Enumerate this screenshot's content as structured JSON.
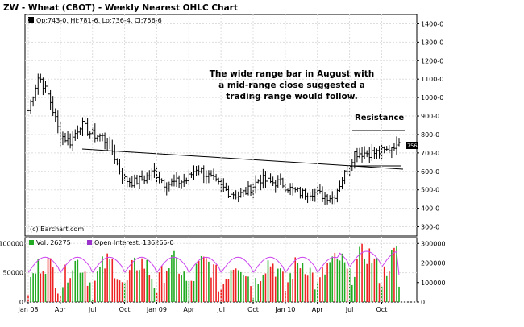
{
  "title": "ZW - Wheat (CBOT) - Weekly Nearest OHLC Chart",
  "price_panel": {
    "legend": "Op:743-0, Hi:781-6, Lo:736-4, Cl:756-6",
    "last_price_label": "756-6",
    "copyright": "(c) Barchart.com",
    "annotation_lines": [
      "The wide range bar in August with",
      "a mid-range close suggested a",
      "trading range would follow."
    ],
    "resistance_label": "Resistance"
  },
  "volume_panel": {
    "vol_legend": "Vol: 26275",
    "oi_legend": "Open Interest: 136265-0"
  },
  "colors": {
    "up_volume": "#22aa22",
    "down_volume": "#ee2222",
    "open_interest": "#cc44ee",
    "price_bars": "#000000",
    "vol_legend_box": "#22aa22",
    "oi_legend_box": "#9933cc"
  },
  "chart_data": [
    {
      "type": "ohlc",
      "title": "ZW - Wheat (CBOT) - Weekly Nearest OHLC Chart",
      "x_tick_labels": [
        "Jan 08",
        "Apr",
        "Jul",
        "Oct",
        "Jan 09",
        "Apr",
        "Jul",
        "Oct",
        "Jan 10",
        "Apr",
        "Jul",
        "Oct"
      ],
      "y_tick_labels": [
        "1400-0",
        "1300-0",
        "1200-0",
        "1100-0",
        "1000-0",
        "900-0",
        "800-0",
        "700-0",
        "600-0",
        "500-0",
        "400-0",
        "300-0"
      ],
      "ylim": [
        250,
        1450
      ],
      "last_bar": {
        "open": 743.0,
        "high": 781.75,
        "low": 736.5,
        "close": 756.75
      },
      "approx_closes": [
        {
          "date": "2008-01",
          "value": 930
        },
        {
          "date": "2008-02",
          "value": 1120
        },
        {
          "date": "2008-03",
          "value": 1000
        },
        {
          "date": "2008-04",
          "value": 800
        },
        {
          "date": "2008-05",
          "value": 760
        },
        {
          "date": "2008-06",
          "value": 860
        },
        {
          "date": "2008-07",
          "value": 800
        },
        {
          "date": "2008-08",
          "value": 790
        },
        {
          "date": "2008-09",
          "value": 710
        },
        {
          "date": "2008-10",
          "value": 560
        },
        {
          "date": "2008-11",
          "value": 540
        },
        {
          "date": "2008-12",
          "value": 560
        },
        {
          "date": "2009-01",
          "value": 600
        },
        {
          "date": "2009-02",
          "value": 530
        },
        {
          "date": "2009-03",
          "value": 540
        },
        {
          "date": "2009-04",
          "value": 550
        },
        {
          "date": "2009-05",
          "value": 620
        },
        {
          "date": "2009-06",
          "value": 580
        },
        {
          "date": "2009-07",
          "value": 530
        },
        {
          "date": "2009-08",
          "value": 490
        },
        {
          "date": "2009-09",
          "value": 470
        },
        {
          "date": "2009-10",
          "value": 500
        },
        {
          "date": "2009-11",
          "value": 560
        },
        {
          "date": "2009-12",
          "value": 540
        },
        {
          "date": "2010-01",
          "value": 540
        },
        {
          "date": "2010-02",
          "value": 500
        },
        {
          "date": "2010-03",
          "value": 480
        },
        {
          "date": "2010-04",
          "value": 490
        },
        {
          "date": "2010-05",
          "value": 470
        },
        {
          "date": "2010-06",
          "value": 460
        },
        {
          "date": "2010-07",
          "value": 580
        },
        {
          "date": "2010-08",
          "value": 700
        },
        {
          "date": "2010-09",
          "value": 700
        },
        {
          "date": "2010-10",
          "value": 700
        },
        {
          "date": "2010-11",
          "value": 710
        },
        {
          "date": "2010-12",
          "value": 757
        }
      ]
    },
    {
      "type": "bar",
      "title": "Vol: 26275",
      "y_tick_labels_left": [
        "100000",
        "50000",
        "0"
      ],
      "y_tick_labels_right": [
        "300000",
        "200000",
        "100000",
        "0"
      ],
      "ylim_volume": [
        0,
        110000
      ],
      "ylim_open_interest": [
        0,
        330000
      ],
      "last_volume": 26275,
      "last_open_interest": 136265
    }
  ]
}
